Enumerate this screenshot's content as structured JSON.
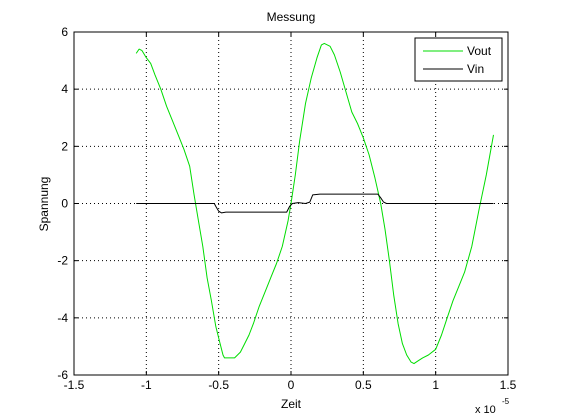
{
  "chart_data": {
    "type": "line",
    "title": "Messung",
    "xlabel": "Zeit",
    "ylabel": "Spannung",
    "x_exponent_label": "x 10",
    "x_exponent_power": "-5",
    "xlim": [
      -1.5,
      1.5
    ],
    "ylim": [
      -6,
      6
    ],
    "xticks": [
      -1.5,
      -1,
      -0.5,
      0,
      0.5,
      1,
      1.5
    ],
    "yticks": [
      -6,
      -4,
      -2,
      0,
      2,
      4,
      6
    ],
    "xtick_labels": [
      "-1.5",
      "-1",
      "-0.5",
      "0",
      "0.5",
      "1",
      "1.5"
    ],
    "ytick_labels": [
      "-6",
      "-4",
      "-2",
      "0",
      "2",
      "4",
      "6"
    ],
    "grid": true,
    "legend_position": "top-right",
    "series": [
      {
        "name": "Vout",
        "color": "#00dd00",
        "x": [
          -1.07,
          -1.05,
          -1.03,
          -1.0,
          -0.97,
          -0.94,
          -0.9,
          -0.86,
          -0.82,
          -0.78,
          -0.74,
          -0.7,
          -0.67,
          -0.64,
          -0.61,
          -0.58,
          -0.55,
          -0.52,
          -0.49,
          -0.47,
          -0.46,
          -0.43,
          -0.39,
          -0.35,
          -0.32,
          -0.29,
          -0.26,
          -0.22,
          -0.18,
          -0.14,
          -0.1,
          -0.06,
          -0.02,
          0.0,
          0.03,
          0.06,
          0.1,
          0.14,
          0.18,
          0.21,
          0.23,
          0.27,
          0.3,
          0.34,
          0.38,
          0.42,
          0.46,
          0.5,
          0.54,
          0.58,
          0.62,
          0.65,
          0.68,
          0.71,
          0.74,
          0.77,
          0.8,
          0.83,
          0.85,
          0.88,
          0.91,
          0.95,
          1.0,
          1.04,
          1.08,
          1.12,
          1.16,
          1.2,
          1.25,
          1.3,
          1.35,
          1.4
        ],
        "y": [
          5.25,
          5.4,
          5.35,
          5.1,
          4.9,
          4.5,
          4.0,
          3.4,
          2.9,
          2.4,
          1.9,
          1.3,
          0.3,
          -0.6,
          -1.5,
          -2.6,
          -3.4,
          -4.3,
          -4.9,
          -5.3,
          -5.4,
          -5.4,
          -5.4,
          -5.2,
          -4.9,
          -4.6,
          -4.2,
          -3.6,
          -3.1,
          -2.6,
          -2.1,
          -1.5,
          -0.6,
          0.0,
          1.0,
          2.2,
          3.5,
          4.4,
          5.1,
          5.55,
          5.6,
          5.5,
          5.2,
          4.6,
          3.9,
          3.2,
          2.8,
          2.3,
          1.7,
          0.9,
          0.0,
          -0.9,
          -2.0,
          -3.2,
          -4.2,
          -4.9,
          -5.3,
          -5.55,
          -5.6,
          -5.5,
          -5.4,
          -5.3,
          -5.1,
          -4.6,
          -4.0,
          -3.4,
          -2.9,
          -2.4,
          -1.5,
          -0.2,
          1.0,
          2.4
        ]
      },
      {
        "name": "Vin",
        "color": "#000000",
        "x": [
          -1.07,
          -1.0,
          -0.9,
          -0.8,
          -0.7,
          -0.6,
          -0.53,
          -0.52,
          -0.5,
          -0.48,
          -0.45,
          -0.4,
          -0.3,
          -0.2,
          -0.1,
          -0.03,
          -0.01,
          0.01,
          0.05,
          0.1,
          0.13,
          0.15,
          0.2,
          0.3,
          0.4,
          0.5,
          0.6,
          0.62,
          0.64,
          0.66,
          0.7,
          0.8,
          0.9,
          1.0,
          1.1,
          1.2,
          1.3,
          1.4
        ],
        "y": [
          0.0,
          0.0,
          0.0,
          0.0,
          0.0,
          0.0,
          0.0,
          -0.1,
          -0.27,
          -0.33,
          -0.3,
          -0.3,
          -0.3,
          -0.3,
          -0.3,
          -0.3,
          -0.1,
          0.0,
          0.03,
          0.0,
          0.05,
          0.3,
          0.33,
          0.33,
          0.33,
          0.33,
          0.33,
          0.2,
          0.05,
          0.0,
          0.0,
          0.0,
          0.0,
          0.0,
          0.0,
          0.0,
          0.0,
          0.0
        ]
      }
    ]
  }
}
